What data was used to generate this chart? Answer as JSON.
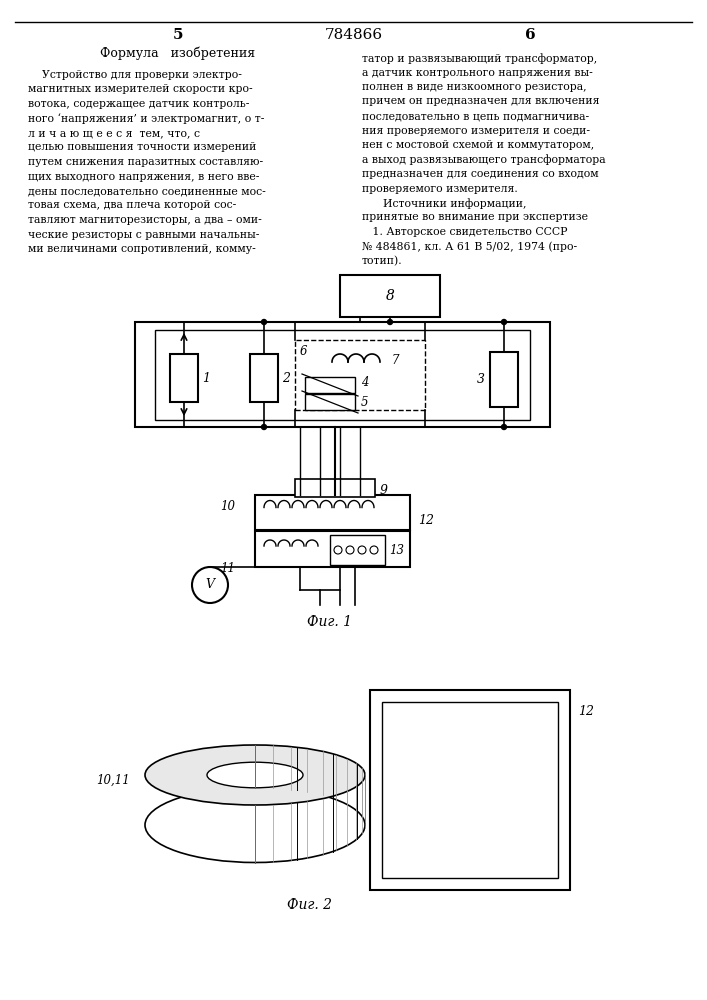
{
  "page_number_left": "5",
  "page_number_center": "784866",
  "page_number_right": "6",
  "section_title": "Формула   изобретения",
  "left_text_lines": [
    "    Устройство для проверки электро-",
    "магнитных измерителей скорости кро-",
    "вотока, содержащее датчик контроль-",
    "ного ‘напряжения’ и электромагнит, о т-",
    "л и ч а ю щ е е с я  тем, что, с",
    "целью повышения точности измерений",
    "путем снижения паразитных составляю-",
    "щих выходного напряжения, в него вве-",
    "дены последовательно соединенные мос-",
    "товая схема, два плеча которой сос-",
    "тавляют магниторезисторы, а два – оми-",
    "ческие резисторы с равными начальны-",
    "ми величинами сопротивлений, комму-"
  ],
  "right_text_lines": [
    "татор и развязывающий трансформатор,",
    "а датчик контрольного напряжения вы-",
    "полнен в виде низкоомного резистора,",
    "причем он предназначен для включения",
    "последовательно в цепь подмагничива-",
    "ния проверяемого измерителя и соеди-",
    "нен с мостовой схемой и коммутатором,",
    "а выход развязывающего трансформатора",
    "предназначен для соединения со входом",
    "проверяемого измерителя.",
    "      Источники информации,",
    "принятые во внимание при экспертизе",
    "   1. Авторское свидетельство СССР",
    "№ 484861, кл. А 61 В 5/02, 1974 (про-",
    "тотип)."
  ],
  "fig1_label": "Фиг. 1",
  "fig2_label": "Фиг. 2",
  "bg_color": "#ffffff",
  "text_color": "#000000",
  "line_color": "#000000"
}
